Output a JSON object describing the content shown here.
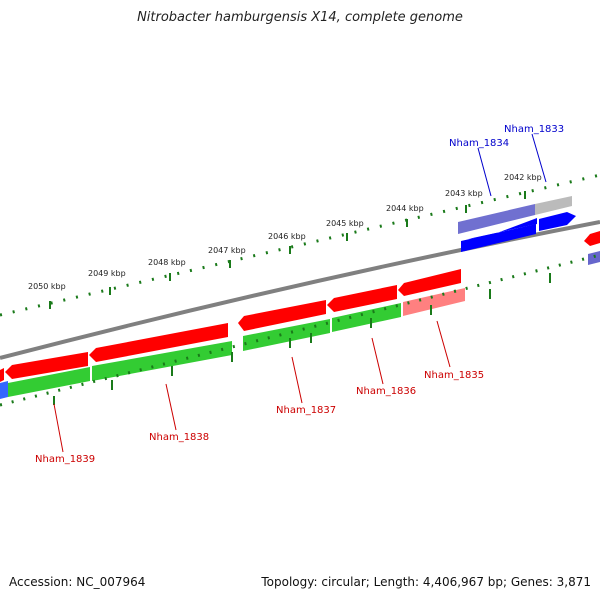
{
  "title": "Nitrobacter hamburgensis X14, complete genome",
  "footer": {
    "accession": "Accession: NC_007964",
    "summary": "Topology: circular; Length: 4,406,967 bp; Genes: 3,871"
  },
  "scale_labels": [
    "2050 kbp",
    "2049 kbp",
    "2048 kbp",
    "2047 kbp",
    "2046 kbp",
    "2045 kbp",
    "2044 kbp",
    "2043 kbp",
    "2042 kbp"
  ],
  "gene_labels": {
    "top": [
      "Nham_1834",
      "Nham_1833"
    ],
    "bottom": [
      "Nham_1839",
      "Nham_1838",
      "Nham_1837",
      "Nham_1836",
      "Nham_1835"
    ]
  },
  "colors": {
    "forward_cds": "#ff0000",
    "forward_pseudo": "#ff8080",
    "reverse_cds": "#0000ff",
    "reverse_light": "#7070d0",
    "rna_gray": "#bbbbbb",
    "green_track": "#33cc33",
    "backbone": "#808080",
    "tick": "#1a7a1a",
    "label_red": "#cc0000",
    "label_blue": "#0000cc"
  }
}
